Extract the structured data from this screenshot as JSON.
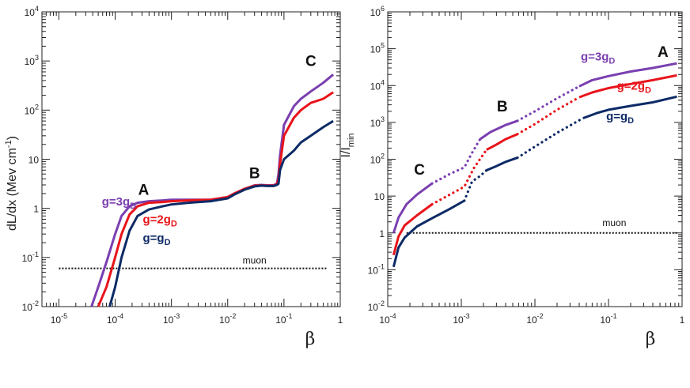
{
  "chart_data": [
    {
      "type": "line",
      "title": "",
      "xlabel": "β",
      "ylabel": "dL/dx  (Mev cm-1)",
      "xscale": "log",
      "yscale": "log",
      "xlim": [
        5e-06,
        1
      ],
      "ylim": [
        0.01,
        10000
      ],
      "x_ticks": [
        {
          "value": 1e-05,
          "base": "10",
          "exp": "-5"
        },
        {
          "value": 0.0001,
          "base": "10",
          "exp": "-4"
        },
        {
          "value": 0.001,
          "base": "10",
          "exp": "-3"
        },
        {
          "value": 0.01,
          "base": "10",
          "exp": "-2"
        },
        {
          "value": 0.1,
          "base": "10",
          "exp": "-1"
        },
        {
          "value": 1,
          "base": "1",
          "exp": ""
        }
      ],
      "y_ticks": [
        {
          "value": 0.01,
          "base": "10",
          "exp": "-2"
        },
        {
          "value": 0.1,
          "base": "10",
          "exp": "-1"
        },
        {
          "value": 1,
          "base": "1",
          "exp": ""
        },
        {
          "value": 10,
          "base": "10",
          "exp": ""
        },
        {
          "value": 100,
          "base": "10",
          "exp": "2"
        },
        {
          "value": 1000,
          "base": "10",
          "exp": "3"
        },
        {
          "value": 10000,
          "base": "10",
          "exp": "4"
        }
      ],
      "series": [
        {
          "name": "g=3gD",
          "color": "#7a3fb0",
          "x": [
            3.8e-05,
            5e-05,
            7e-05,
            0.0001,
            0.00013,
            0.00018,
            0.00025,
            0.0004,
            0.0007,
            0.001,
            0.002,
            0.005,
            0.01,
            0.013,
            0.02,
            0.03,
            0.04,
            0.05,
            0.065,
            0.075,
            0.08,
            0.085,
            0.1,
            0.15,
            0.2,
            0.3,
            0.5,
            0.75
          ],
          "y": [
            0.01,
            0.025,
            0.08,
            0.3,
            0.7,
            1.1,
            1.3,
            1.4,
            1.45,
            1.5,
            1.5,
            1.5,
            1.7,
            2.0,
            2.5,
            2.95,
            3.0,
            2.95,
            2.95,
            3.2,
            5,
            12,
            50,
            120,
            170,
            240,
            360,
            530
          ]
        },
        {
          "name": "g=2gD",
          "color": "#e8141a",
          "x": [
            5e-05,
            7e-05,
            0.0001,
            0.00013,
            0.00018,
            0.00025,
            0.0004,
            0.0007,
            0.001,
            0.002,
            0.005,
            0.01,
            0.013,
            0.02,
            0.03,
            0.04,
            0.05,
            0.065,
            0.075,
            0.08,
            0.085,
            0.1,
            0.15,
            0.2,
            0.3,
            0.5,
            0.75
          ],
          "y": [
            0.01,
            0.025,
            0.1,
            0.3,
            0.75,
            1.1,
            1.3,
            1.35,
            1.4,
            1.45,
            1.5,
            1.7,
            2.0,
            2.5,
            2.9,
            2.95,
            2.9,
            2.9,
            3.1,
            4,
            8,
            30,
            70,
            100,
            140,
            170,
            230
          ]
        },
        {
          "name": "g=gD",
          "color": "#0d2a66",
          "x": [
            8e-05,
            0.0001,
            0.00013,
            0.00018,
            0.00025,
            0.0004,
            0.0007,
            0.001,
            0.002,
            0.005,
            0.01,
            0.013,
            0.02,
            0.03,
            0.04,
            0.05,
            0.065,
            0.075,
            0.08,
            0.085,
            0.1,
            0.15,
            0.2,
            0.3,
            0.5,
            0.75
          ],
          "y": [
            0.01,
            0.025,
            0.1,
            0.35,
            0.7,
            0.95,
            1.1,
            1.2,
            1.3,
            1.4,
            1.6,
            1.9,
            2.4,
            2.8,
            2.9,
            2.85,
            2.85,
            3.0,
            3.2,
            6,
            10,
            15,
            22,
            30,
            45,
            60
          ]
        }
      ],
      "reference_line": {
        "name": "muon",
        "y": 0.06,
        "x": [
          1e-05,
          0.6
        ],
        "style": "dotted"
      },
      "annotations": [
        {
          "text": "A",
          "x": 0.00032,
          "y": 1.9
        },
        {
          "text": "B",
          "x": 0.03,
          "y": 4.1
        },
        {
          "text": "C",
          "x": 0.3,
          "y": 790
        },
        {
          "text": "g=3gD",
          "series": "g=3gD",
          "x": 5.8e-05,
          "y": 1.15
        },
        {
          "text": "g=2gD",
          "series": "g=2gD",
          "x": 0.00031,
          "y": 0.5
        },
        {
          "text": "g=gD",
          "series": "g=gD",
          "x": 0.00031,
          "y": 0.21
        }
      ]
    },
    {
      "type": "line",
      "title": "",
      "xlabel": "β",
      "ylabel": "I/Imin",
      "xscale": "log",
      "yscale": "log",
      "xlim": [
        0.0001,
        1
      ],
      "ylim": [
        0.01,
        1000000
      ],
      "x_ticks": [
        {
          "value": 0.0001,
          "base": "10",
          "exp": "-4"
        },
        {
          "value": 0.001,
          "base": "10",
          "exp": "-3"
        },
        {
          "value": 0.01,
          "base": "10",
          "exp": "-2"
        },
        {
          "value": 0.1,
          "base": "10",
          "exp": "-1"
        },
        {
          "value": 1,
          "base": "1",
          "exp": ""
        }
      ],
      "y_ticks": [
        {
          "value": 0.01,
          "base": "10",
          "exp": "-2"
        },
        {
          "value": 0.1,
          "base": "10",
          "exp": "-1"
        },
        {
          "value": 1,
          "base": "1",
          "exp": ""
        },
        {
          "value": 10,
          "base": "10",
          "exp": ""
        },
        {
          "value": 100,
          "base": "10",
          "exp": "2"
        },
        {
          "value": 1000,
          "base": "10",
          "exp": "3"
        },
        {
          "value": 10000,
          "base": "10",
          "exp": "4"
        },
        {
          "value": 100000,
          "base": "10",
          "exp": "5"
        },
        {
          "value": 1000000,
          "base": "10",
          "exp": "6"
        }
      ],
      "series": [
        {
          "name": "g=3gD",
          "color": "#7a3fb0",
          "segments": [
            {
              "style": "solid",
              "x": [
                0.00012,
                0.00014,
                0.00018,
                0.00025,
                0.0004
              ],
              "y": [
                1.0,
                2.6,
                6.0,
                11,
                22
              ]
            },
            {
              "style": "dotted",
              "x": [
                0.0004,
                0.0007,
                0.0011,
                0.0014,
                0.0018
              ],
              "y": [
                22,
                40,
                60,
                150,
                350
              ]
            },
            {
              "style": "solid",
              "x": [
                0.0018,
                0.0025,
                0.004,
                0.0058
              ],
              "y": [
                350,
                550,
                850,
                1100
              ]
            },
            {
              "style": "dotted",
              "x": [
                0.0058,
                0.01,
                0.02,
                0.04
              ],
              "y": [
                1100,
                2000,
                4500,
                9500
              ]
            },
            {
              "style": "solid",
              "x": [
                0.04,
                0.06,
                0.1,
                0.2,
                0.4,
                0.85
              ],
              "y": [
                9500,
                14000,
                18000,
                24000,
                30000,
                40000
              ]
            }
          ]
        },
        {
          "name": "g=2gD",
          "color": "#e8141a",
          "segments": [
            {
              "style": "solid",
              "x": [
                0.00012,
                0.00014,
                0.00017,
                0.00025,
                0.0004
              ],
              "y": [
                0.25,
                0.8,
                1.6,
                3,
                6
              ]
            },
            {
              "style": "dotted",
              "x": [
                0.0004,
                0.0007,
                0.0011,
                0.0015,
                0.0022
              ],
              "y": [
                6,
                11,
                18,
                60,
                180
              ]
            },
            {
              "style": "solid",
              "x": [
                0.0022,
                0.003,
                0.004,
                0.0058
              ],
              "y": [
                180,
                250,
                350,
                480
              ]
            },
            {
              "style": "dotted",
              "x": [
                0.0058,
                0.01,
                0.02,
                0.04
              ],
              "y": [
                480,
                900,
                2200,
                4800
              ]
            },
            {
              "style": "solid",
              "x": [
                0.04,
                0.06,
                0.1,
                0.2,
                0.4,
                0.85
              ],
              "y": [
                4800,
                6500,
                8500,
                11000,
                14000,
                19000
              ]
            }
          ]
        },
        {
          "name": "g=gD",
          "color": "#0d2a66",
          "segments": [
            {
              "style": "solid",
              "x": [
                0.00012,
                0.00014,
                0.00017,
                0.00025,
                0.0004,
                0.0007,
                0.0011
              ],
              "y": [
                0.12,
                0.4,
                0.75,
                1.5,
                2.5,
                4.5,
                7.5
              ]
            },
            {
              "style": "dotted",
              "x": [
                0.0011,
                0.0014,
                0.0018,
                0.0022
              ],
              "y": [
                7.5,
                25,
                35,
                50
              ]
            },
            {
              "style": "solid",
              "x": [
                0.0022,
                0.003,
                0.004,
                0.0058
              ],
              "y": [
                50,
                65,
                85,
                110
              ]
            },
            {
              "style": "dotted",
              "x": [
                0.0058,
                0.01,
                0.02,
                0.045
              ],
              "y": [
                110,
                220,
                520,
                1300
              ]
            },
            {
              "style": "solid",
              "x": [
                0.045,
                0.07,
                0.1,
                0.2,
                0.4,
                0.85
              ],
              "y": [
                1300,
                1800,
                2200,
                2800,
                3500,
                5000
              ]
            }
          ]
        }
      ],
      "reference_line": {
        "name": "muon",
        "y": 1,
        "x": [
          0.00018,
          0.85
        ],
        "style": "dotted"
      },
      "annotations": [
        {
          "text": "A",
          "x": 0.55,
          "y": 60000
        },
        {
          "text": "B",
          "x": 0.0036,
          "y": 2000
        },
        {
          "text": "C",
          "x": 0.00027,
          "y": 38
        },
        {
          "text": "muon",
          "x": 0.12,
          "y": 1.55
        },
        {
          "text": "g=3gD",
          "series": "g=3gD",
          "x": 0.042,
          "y": 48000
        },
        {
          "text": "g=2gD",
          "series": "g=2gD",
          "x": 0.13,
          "y": 7800
        },
        {
          "text": "g=gD",
          "series": "g=gD",
          "x": 0.093,
          "y": 1150
        }
      ]
    }
  ]
}
